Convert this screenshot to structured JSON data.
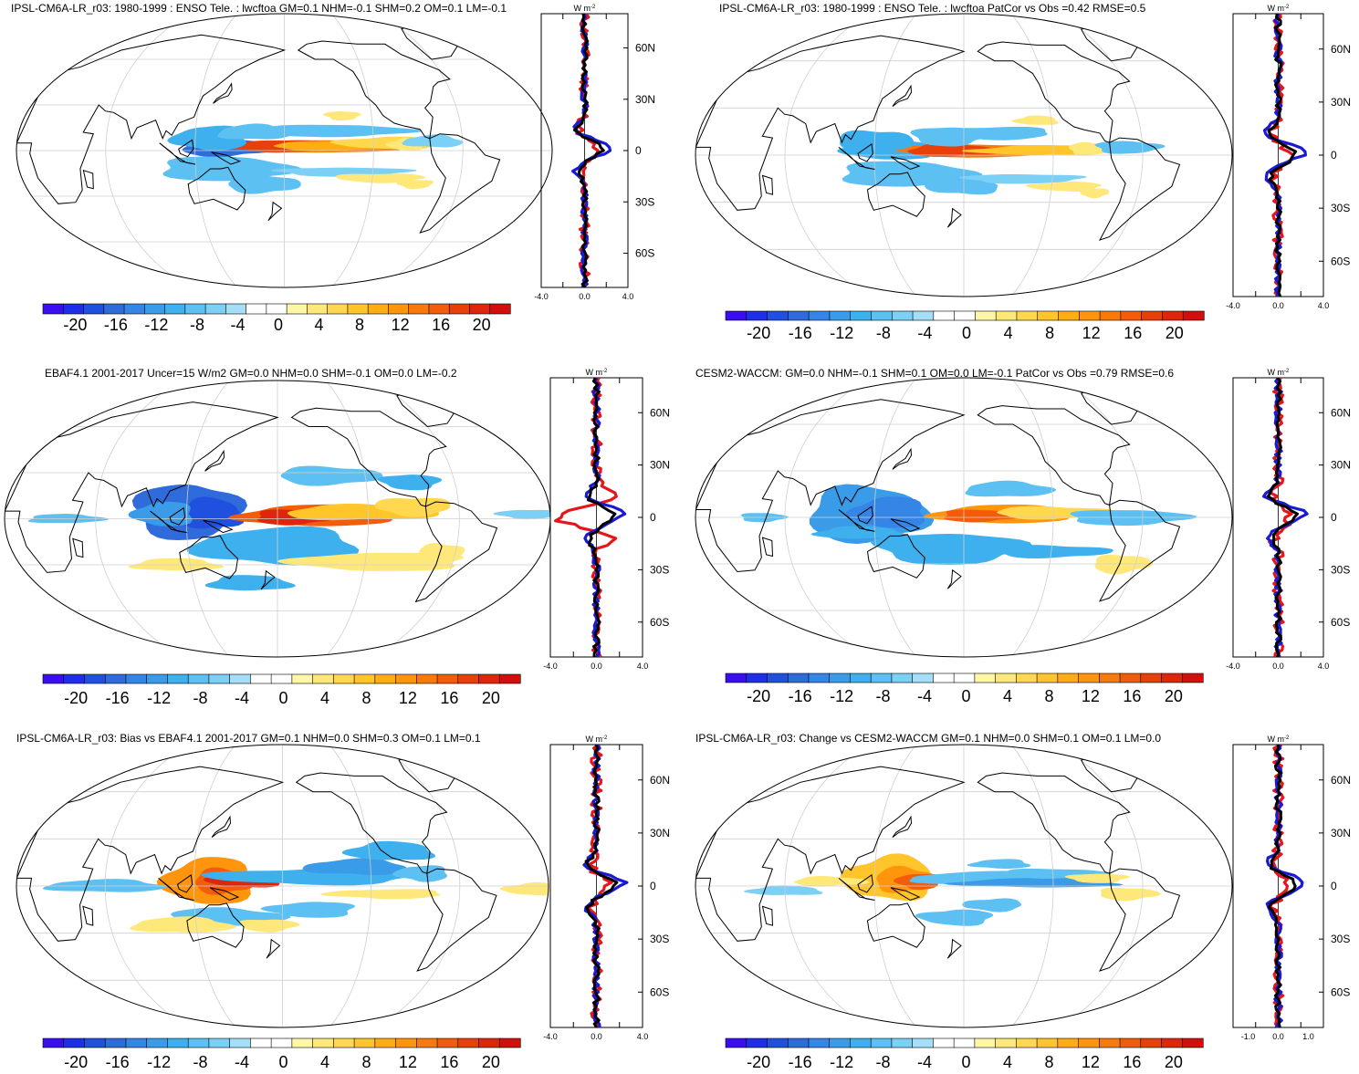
{
  "figure": {
    "variable": "lwcftoa",
    "units_label": "W m",
    "units_exponent": "-2"
  },
  "colorbar": {
    "levels": [
      -24,
      -22,
      -20,
      -18,
      -16,
      -14,
      -12,
      -10,
      -8,
      -6,
      -4,
      -2,
      0,
      2,
      4,
      6,
      8,
      10,
      12,
      14,
      16,
      18,
      20,
      22,
      24
    ],
    "labels": [
      "-20",
      "-16",
      "-12",
      "-8",
      "-4",
      "0",
      "4",
      "8",
      "12",
      "16",
      "20"
    ],
    "colors": [
      "#3a0ef0",
      "#1f2ee8",
      "#2050e0",
      "#2f6bdb",
      "#3585e6",
      "#3a9be8",
      "#3fb0ee",
      "#5cc0f2",
      "#7ccff5",
      "#a4def7",
      "#ffffff",
      "#ffffff",
      "#fff6a8",
      "#ffe87a",
      "#ffd84f",
      "#ffc52a",
      "#ffad13",
      "#ff950c",
      "#f97a0a",
      "#f25c0a",
      "#e8400a",
      "#df250b",
      "#d30f0d"
    ]
  },
  "zonal_axis": {
    "lat_labels": [
      "60N",
      "30N",
      "0",
      "30S",
      "60S"
    ],
    "lat_values": [
      60,
      30,
      0,
      -30,
      -60
    ],
    "series_colors": {
      "model": "#e5161b",
      "obs": "#1a1ad4",
      "mean": "#000000"
    }
  },
  "panels": [
    {
      "id": "model",
      "title": "IPSL-CM6A-LR_r03: 1980-1999 : ENSO Tele. : lwcftoa GM=0.1 NHM=-0.1 SHM=0.2 OM=0.1 LM=-0.1",
      "zonal_ticks": [
        "-4.0",
        "0.0",
        "4.0"
      ],
      "zonal_range": [
        -4,
        4
      ]
    },
    {
      "id": "model-patcor",
      "title": "IPSL-CM6A-LR_r03: 1980-1999 : ENSO Tele. : lwcftoa PatCor vs Obs =0.42 RMSE=0.5",
      "zonal_ticks": [
        "-4.0",
        "0.0",
        "4.0"
      ],
      "zonal_range": [
        -4,
        4
      ]
    },
    {
      "id": "obs",
      "title": "EBAF4.1 2001-2017 Uncer=15 W/m2 GM=0.0 NHM=0.0 SHM=-0.1 OM=0.0 LM=-0.2",
      "zonal_ticks": [
        "-4.0",
        "0.0",
        "4.0"
      ],
      "zonal_range": [
        -4,
        4
      ]
    },
    {
      "id": "reference",
      "title": "CESM2-WACCM: GM=0.0 NHM=-0.1 SHM=0.1 OM=0.0 LM=-0.1 PatCor vs Obs =0.79 RMSE=0.6",
      "zonal_ticks": [
        "-4.0",
        "0.0",
        "4.0"
      ],
      "zonal_range": [
        -4,
        4
      ]
    },
    {
      "id": "bias",
      "title": "IPSL-CM6A-LR_r03: Bias vs EBAF4.1 2001-2017 GM=0.1 NHM=0.0 SHM=0.3 OM=0.1 LM=0.1",
      "zonal_ticks": [
        "-4.0",
        "0.0",
        "4.0"
      ],
      "zonal_range": [
        -4,
        4
      ]
    },
    {
      "id": "change",
      "title": "IPSL-CM6A-LR_r03: Change vs CESM2-WACCM GM=0.1 NHM=0.0 SHM=0.1 OM=0.1 LM=0.0",
      "zonal_ticks": [
        "-1.0",
        "0.0",
        "1.0"
      ],
      "zonal_range": [
        -1.5,
        1.5
      ]
    }
  ]
}
